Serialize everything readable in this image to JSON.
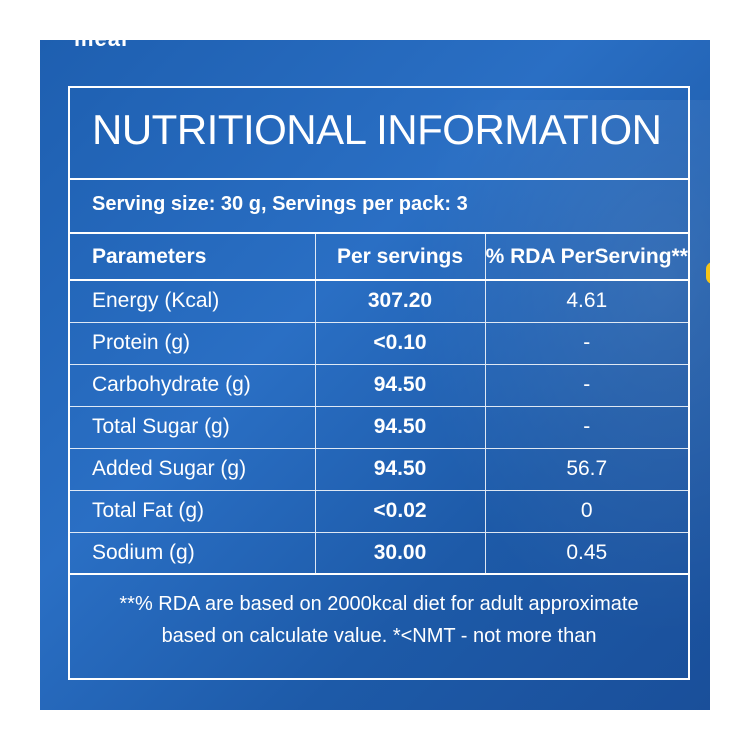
{
  "header_cut_text": "meal",
  "label": {
    "title": "NUTRITIONAL INFORMATION",
    "serving_info": "Serving size: 30 g, Servings per pack: 3",
    "columns": [
      "Parameters",
      "Per servings",
      "% RDA PerServing**"
    ],
    "rows": [
      {
        "parameter": "Energy (Kcal)",
        "per_serving": "307.20",
        "rda": "4.61"
      },
      {
        "parameter": "Protein (g)",
        "per_serving": "<0.10",
        "rda": "-"
      },
      {
        "parameter": "Carbohydrate (g)",
        "per_serving": "94.50",
        "rda": "-"
      },
      {
        "parameter": "Total Sugar (g)",
        "per_serving": "94.50",
        "rda": "-"
      },
      {
        "parameter": "Added Sugar (g)",
        "per_serving": "94.50",
        "rda": "56.7"
      },
      {
        "parameter": "Total Fat (g)",
        "per_serving": "<0.02",
        "rda": "0"
      },
      {
        "parameter": "Sodium (g)",
        "per_serving": "30.00",
        "rda": "0.45"
      }
    ],
    "footnote_line1": "**% RDA are based on 2000kcal diet for adult approximate",
    "footnote_line2": "based on calculate value. *<NMT  - not more than"
  },
  "colors": {
    "panel_blue": "#1e5fb0",
    "text": "#ffffff",
    "accent_yellow": "#f5c518"
  }
}
